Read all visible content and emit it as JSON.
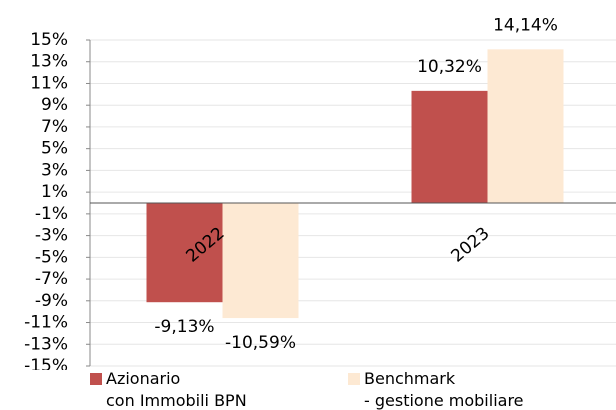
{
  "chart_data": {
    "type": "bar",
    "categories": [
      "2022",
      "2023"
    ],
    "series": [
      {
        "name": "Azionario\ncon Immobili BPN",
        "color": "#c0504d",
        "values": [
          -9.13,
          10.32
        ],
        "value_labels": [
          "-9,13%",
          "10,32%"
        ]
      },
      {
        "name": "Benchmark\n- gestione mobiliare",
        "color": "#fde9d3",
        "values": [
          -10.59,
          14.14
        ],
        "value_labels": [
          "-10,59%",
          "14,14%"
        ]
      }
    ],
    "ylim": [
      -15,
      15
    ],
    "yticks": [
      {
        "value": 15,
        "label": "15%"
      },
      {
        "value": 13,
        "label": "13%"
      },
      {
        "value": 11,
        "label": "11%"
      },
      {
        "value": 9,
        "label": "9%"
      },
      {
        "value": 7,
        "label": "7%"
      },
      {
        "value": 5,
        "label": "5%"
      },
      {
        "value": 3,
        "label": "3%"
      },
      {
        "value": 1,
        "label": "1%"
      },
      {
        "value": -1,
        "label": "-1%"
      },
      {
        "value": -3,
        "label": "-3%"
      },
      {
        "value": -5,
        "label": "-5%"
      },
      {
        "value": -7,
        "label": "-7%"
      },
      {
        "value": -9,
        "label": "-9%"
      },
      {
        "value": -11,
        "label": "-11%"
      },
      {
        "value": -13,
        "label": "-13%"
      },
      {
        "value": -15,
        "label": "-15%"
      }
    ],
    "grid": true,
    "legend": "bottom"
  }
}
